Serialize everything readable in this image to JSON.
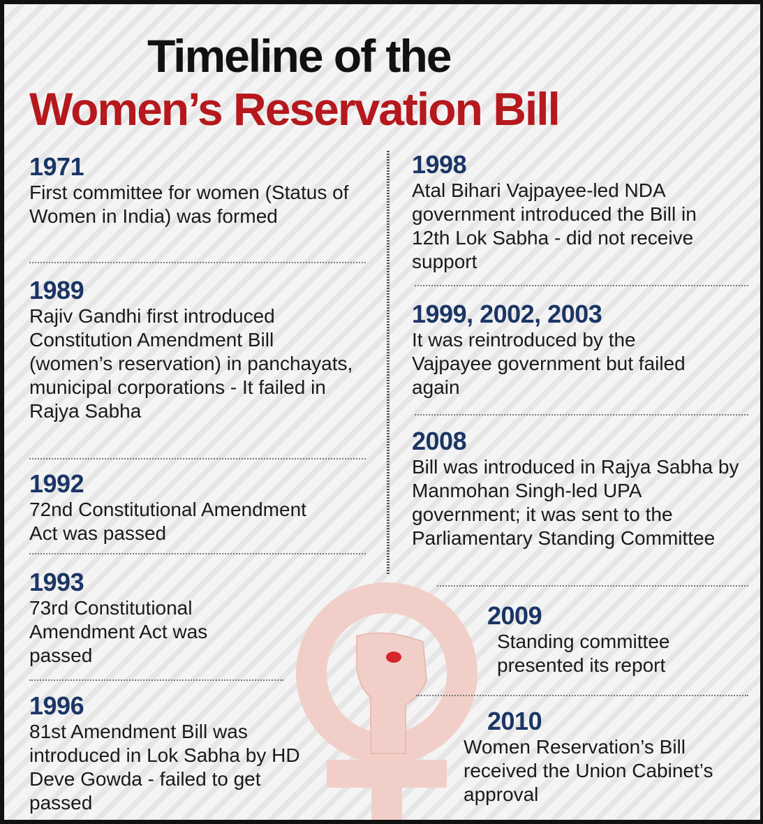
{
  "header": {
    "title_line1": "Timeline of the",
    "title_line2": "Women’s Reservation Bill"
  },
  "left": [
    {
      "year": "1971",
      "text": "First committee for women (Status of Women in India) was formed"
    },
    {
      "year": "1989",
      "text": "Rajiv Gandhi first introduced Constitution Amendment Bill (women’s reservation) in panchayats, municipal corporations - It failed in Rajya Sabha"
    },
    {
      "year": "1992",
      "text": "72nd Constitutional Amendment Act was passed"
    },
    {
      "year": "1993",
      "text": "73rd Constitutional Amendment Act was passed"
    },
    {
      "year": "1996",
      "text": "81st Amendment Bill was introduced in Lok Sabha by HD Deve Gowda - failed to get passed"
    }
  ],
  "right": [
    {
      "year": "1998",
      "text": "Atal Bihari Vajpayee-led NDA government introduced the Bill in 12th Lok Sabha - did not receive support"
    },
    {
      "year": "1999, 2002, 2003",
      "text": "It was reintroduced by the Vajpayee government but failed again"
    },
    {
      "year": "2008",
      "text": "Bill was introduced in Rajya Sabha by Manmohan Singh-led UPA government; it was sent to the Parliamentary Standing Committee"
    },
    {
      "year": "2009",
      "text": "Standing committee presented its report"
    },
    {
      "year": "2010",
      "text": "Women Reservation’s Bill received the Union Cabinet’s approval"
    }
  ]
}
